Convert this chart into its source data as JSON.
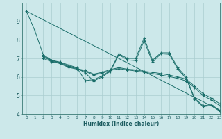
{
  "xlabel": "Humidex (Indice chaleur)",
  "background_color": "#cce8ea",
  "grid_color": "#aacdd0",
  "line_color": "#1a6e6a",
  "xlim": [
    -0.5,
    23
  ],
  "ylim": [
    4,
    10
  ],
  "yticks": [
    4,
    5,
    6,
    7,
    8,
    9
  ],
  "xticks": [
    0,
    1,
    2,
    3,
    4,
    5,
    6,
    7,
    8,
    9,
    10,
    11,
    12,
    13,
    14,
    15,
    16,
    17,
    18,
    19,
    20,
    21,
    22,
    23
  ],
  "series": [
    {
      "x": [
        0,
        1,
        2,
        3,
        4,
        5,
        6,
        7,
        8,
        9,
        10,
        11,
        12,
        13,
        14,
        15,
        16,
        17,
        18,
        19,
        20,
        21,
        22,
        23
      ],
      "y": [
        9.55,
        8.5,
        7.2,
        6.9,
        6.8,
        6.65,
        6.5,
        5.8,
        5.85,
        6.05,
        6.35,
        7.25,
        7.0,
        7.0,
        8.1,
        6.9,
        7.3,
        7.3,
        6.5,
        6.0,
        4.85,
        4.45,
        4.5,
        4.2
      ],
      "markers": true
    },
    {
      "x": [
        2,
        3,
        4,
        5,
        6,
        7,
        8,
        9,
        10,
        11,
        12,
        13,
        14,
        15,
        16,
        17,
        18,
        19,
        20,
        21,
        22,
        23
      ],
      "y": [
        7.15,
        6.88,
        6.78,
        6.6,
        6.48,
        6.22,
        5.78,
        6.0,
        6.3,
        7.2,
        6.92,
        6.88,
        7.95,
        6.8,
        7.25,
        7.22,
        6.42,
        5.92,
        4.8,
        4.4,
        4.45,
        4.15
      ],
      "markers": true
    },
    {
      "x": [
        2,
        3,
        4,
        5,
        6,
        7,
        8,
        9,
        10,
        11,
        12,
        13,
        14,
        15,
        16,
        17,
        18,
        19,
        20,
        21,
        22,
        23
      ],
      "y": [
        7.1,
        6.85,
        6.75,
        6.55,
        6.45,
        6.35,
        6.15,
        6.25,
        6.4,
        6.5,
        6.42,
        6.38,
        6.3,
        6.25,
        6.18,
        6.1,
        6.0,
        5.88,
        5.5,
        5.1,
        4.85,
        4.55
      ],
      "markers": true
    },
    {
      "x": [
        0,
        23
      ],
      "y": [
        9.55,
        4.2
      ],
      "markers": false
    },
    {
      "x": [
        2,
        3,
        4,
        5,
        6,
        7,
        8,
        9,
        10,
        11,
        12,
        13,
        14,
        15,
        16,
        17,
        18,
        19,
        20,
        21,
        22,
        23
      ],
      "y": [
        7.0,
        6.82,
        6.72,
        6.52,
        6.42,
        6.3,
        6.1,
        6.2,
        6.35,
        6.45,
        6.38,
        6.32,
        6.25,
        6.18,
        6.1,
        6.02,
        5.92,
        5.78,
        5.42,
        5.0,
        4.75,
        4.45
      ],
      "markers": true
    }
  ]
}
